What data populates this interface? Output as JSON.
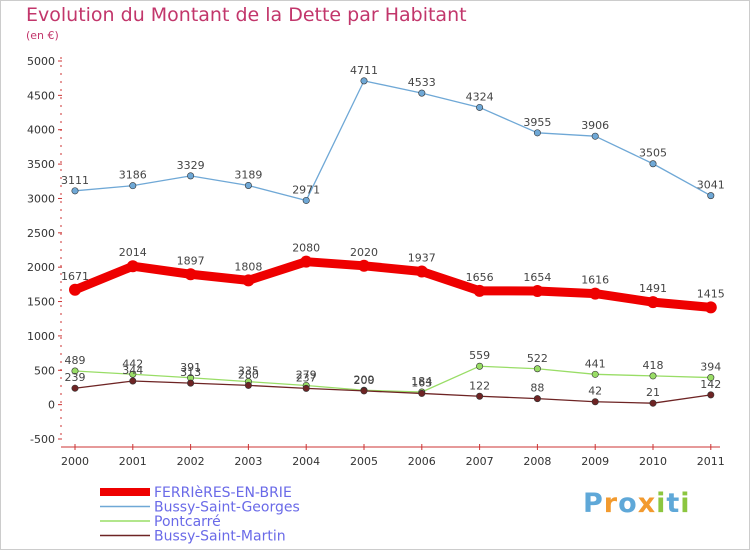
{
  "header": {
    "title": "Evolution du Montant de la Dette par Habitant",
    "subtitle": "(en €)"
  },
  "logo": {
    "text": "Proxiti",
    "letters": [
      {
        "ch": "P",
        "color": "#5fa8d8"
      },
      {
        "ch": "r",
        "color": "#f29a2e"
      },
      {
        "ch": "o",
        "color": "#5fa8d8"
      },
      {
        "ch": "x",
        "color": "#f29a2e"
      },
      {
        "ch": "i",
        "color": "#8cc63f"
      },
      {
        "ch": "t",
        "color": "#5fa8d8"
      },
      {
        "ch": "i",
        "color": "#8cc63f"
      }
    ]
  },
  "chart_data": {
    "type": "line",
    "title": "Evolution du Montant de la Dette par Habitant",
    "subtitle": "(en €)",
    "x": [
      "2000",
      "2001",
      "2002",
      "2003",
      "2004",
      "2005",
      "2006",
      "2007",
      "2008",
      "2009",
      "2010",
      "2011"
    ],
    "ylim": [
      -500,
      5000
    ],
    "yticks": [
      -500,
      0,
      500,
      1000,
      1500,
      2000,
      2500,
      3000,
      3500,
      4000,
      4500,
      5000
    ],
    "grid": false,
    "legend_position": "bottom-left",
    "series": [
      {
        "name": "FERRIèRES-EN-BRIE",
        "color": "#ee0000",
        "emphasis": true,
        "values": [
          1671,
          2014,
          1897,
          1808,
          2080,
          2020,
          1937,
          1656,
          1654,
          1616,
          1491,
          1415
        ]
      },
      {
        "name": "Bussy-Saint-Georges",
        "color": "#6fa8d6",
        "emphasis": false,
        "values": [
          3111,
          3186,
          3329,
          3189,
          2971,
          4711,
          4533,
          4324,
          3955,
          3906,
          3505,
          3041
        ]
      },
      {
        "name": "Pontcarré",
        "color": "#99dd66",
        "emphasis": false,
        "values": [
          489,
          442,
          391,
          335,
          279,
          209,
          184,
          559,
          522,
          441,
          418,
          394
        ]
      },
      {
        "name": "Bussy-Saint-Martin",
        "color": "#6e2424",
        "emphasis": false,
        "values": [
          239,
          344,
          313,
          280,
          237,
          200,
          163,
          122,
          88,
          42,
          21,
          142
        ]
      }
    ]
  }
}
